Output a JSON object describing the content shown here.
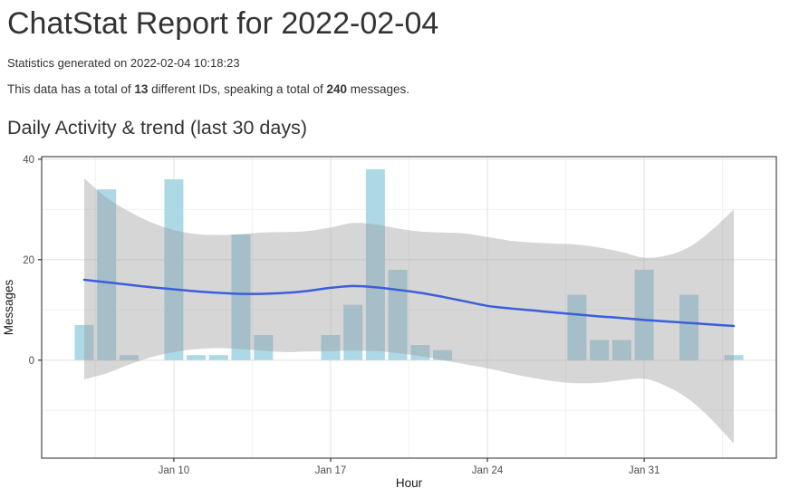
{
  "page": {
    "title": "ChatStat Report for 2022-02-04",
    "generated_line": "Statistics generated on 2022-02-04 10:18:23",
    "summary": {
      "prefix": "This data has a total of ",
      "id_count": "13",
      "middle": " different IDs, speaking a total of ",
      "message_count": "240",
      "suffix": " messages."
    },
    "section_title": "Daily Activity & trend (last 30 days)"
  },
  "chart_data": {
    "type": "bar",
    "overlay_types": [
      "area",
      "line"
    ],
    "title": "Daily Activity & trend (last 30 days)",
    "xlabel": "Hour",
    "ylabel": "Messages",
    "ylim": [
      -19.5,
      40.5
    ],
    "xlim_days": [
      4.1,
      36.9
    ],
    "grid": true,
    "legend": "none",
    "y_major_ticks": [
      0,
      20,
      40
    ],
    "y_minor_ticks": [
      -10,
      10,
      30
    ],
    "x_major_ticks": [
      {
        "day": 10,
        "label": "Jan 10"
      },
      {
        "day": 17,
        "label": "Jan 17"
      },
      {
        "day": 24,
        "label": "Jan 24"
      },
      {
        "day": 31,
        "label": "Jan 31"
      }
    ],
    "x_minor_days": [
      6.5,
      13.5,
      20.5,
      27.5,
      34.5
    ],
    "bar_width_days": 0.85,
    "bars": [
      {
        "date": "Jan 6",
        "day": 6,
        "value": 7
      },
      {
        "date": "Jan 7",
        "day": 7,
        "value": 34
      },
      {
        "date": "Jan 8",
        "day": 8,
        "value": 1
      },
      {
        "date": "Jan 10",
        "day": 10,
        "value": 36
      },
      {
        "date": "Jan 11",
        "day": 11,
        "value": 1
      },
      {
        "date": "Jan 12",
        "day": 12,
        "value": 1
      },
      {
        "date": "Jan 13",
        "day": 13,
        "value": 25
      },
      {
        "date": "Jan 14",
        "day": 14,
        "value": 5
      },
      {
        "date": "Jan 17",
        "day": 17,
        "value": 5
      },
      {
        "date": "Jan 18",
        "day": 18,
        "value": 11
      },
      {
        "date": "Jan 19",
        "day": 19,
        "value": 38
      },
      {
        "date": "Jan 20",
        "day": 20,
        "value": 18
      },
      {
        "date": "Jan 21",
        "day": 21,
        "value": 3
      },
      {
        "date": "Jan 22",
        "day": 22,
        "value": 2
      },
      {
        "date": "Jan 28",
        "day": 28,
        "value": 13
      },
      {
        "date": "Jan 29",
        "day": 29,
        "value": 4
      },
      {
        "date": "Jan 30",
        "day": 30,
        "value": 4
      },
      {
        "date": "Jan 31",
        "day": 31,
        "value": 18
      },
      {
        "date": "Feb 2",
        "day": 33,
        "value": 13
      },
      {
        "date": "Feb 4",
        "day": 35,
        "value": 1
      }
    ],
    "trend_line": {
      "days": [
        6,
        7,
        8,
        9,
        10,
        11,
        12,
        13,
        14,
        15,
        16,
        17,
        18,
        19,
        20,
        21,
        22,
        23,
        24,
        25,
        26,
        27,
        28,
        29,
        30,
        31,
        32,
        33,
        34,
        35
      ],
      "values": [
        16.0,
        15.5,
        15.0,
        14.5,
        14.1,
        13.7,
        13.4,
        13.2,
        13.2,
        13.4,
        13.8,
        14.4,
        14.75,
        14.5,
        14.0,
        13.4,
        12.6,
        11.7,
        10.8,
        10.3,
        9.9,
        9.5,
        9.1,
        8.7,
        8.4,
        8.0,
        7.7,
        7.4,
        7.1,
        6.8
      ]
    },
    "confidence_band": {
      "days": [
        6,
        7,
        8,
        9,
        10,
        11,
        12,
        13,
        14,
        15,
        16,
        17,
        18,
        19,
        20,
        21,
        22,
        23,
        24,
        25,
        26,
        27,
        28,
        29,
        30,
        31,
        32,
        33,
        34,
        35
      ],
      "upper": [
        36.2,
        32.3,
        29.6,
        27.4,
        25.9,
        25.1,
        24.9,
        25.1,
        25.4,
        25.5,
        25.7,
        26.4,
        27.3,
        27.0,
        26.2,
        25.6,
        25.4,
        25.2,
        24.5,
        23.8,
        23.4,
        23.2,
        23.0,
        22.4,
        21.5,
        20.4,
        20.8,
        22.5,
        25.8,
        30.0
      ],
      "lower": [
        -3.8,
        -2.6,
        -0.9,
        0.6,
        1.6,
        2.2,
        2.4,
        2.2,
        1.9,
        1.6,
        1.7,
        1.8,
        1.9,
        1.8,
        1.4,
        0.8,
        0.0,
        -0.8,
        -1.6,
        -2.6,
        -3.5,
        -4.2,
        -4.6,
        -4.5,
        -4.0,
        -3.7,
        -5.2,
        -7.8,
        -11.8,
        -16.6
      ]
    },
    "colors": {
      "bar": "#ADD8E6",
      "band": "#999999",
      "band_opacity": 0.4,
      "line": "#3B5EDC",
      "grid_major": "#E4E4E4",
      "grid_minor": "#F1F1F1",
      "panel_border": "#4A4A4A",
      "tick_mark": "#333333",
      "tick_text": "#4D4D4D",
      "axis_title": "#1A1A1A"
    }
  }
}
